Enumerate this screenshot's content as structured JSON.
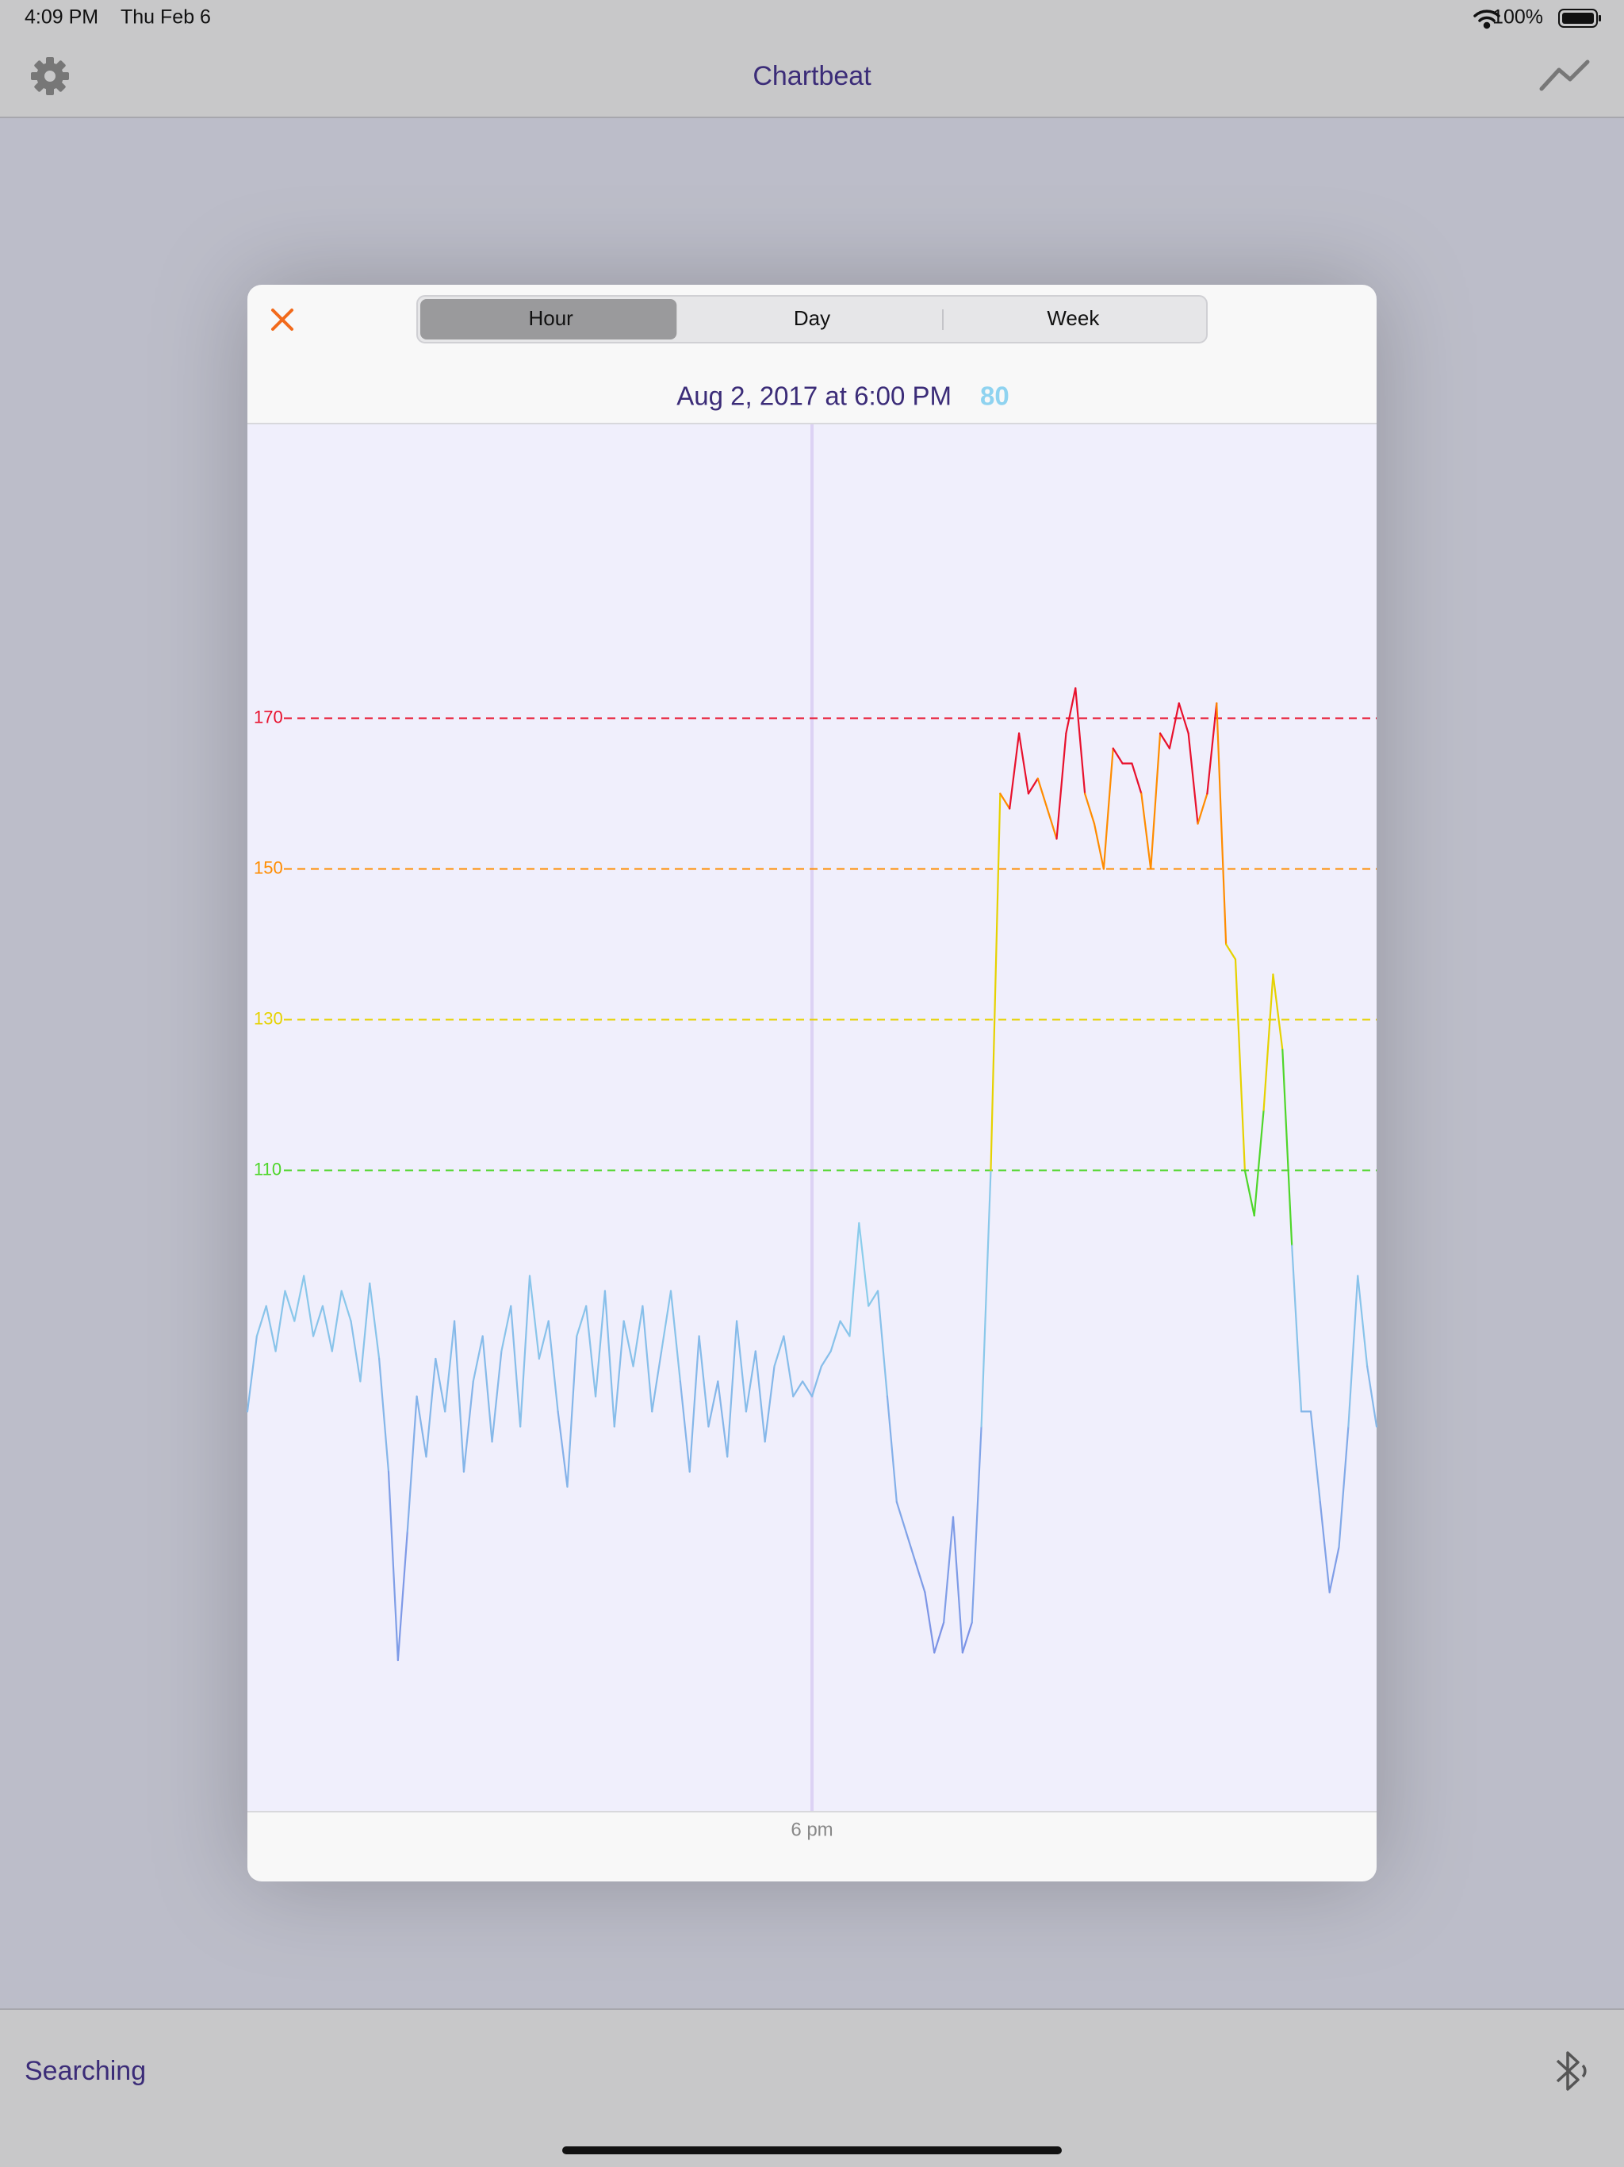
{
  "status_bar": {
    "time": "4:09 PM",
    "date": "Thu Feb 6",
    "battery": "100%"
  },
  "nav_bar": {
    "title": "Chartbeat"
  },
  "modal": {
    "segments": [
      "Hour",
      "Day",
      "Week"
    ],
    "selected_segment": 0,
    "timestamp": "Aug 2, 2017 at 6:00 PM",
    "current_value": 80
  },
  "chart_data": {
    "type": "line",
    "values": [
      78,
      88,
      92,
      86,
      94,
      90,
      96,
      88,
      92,
      86,
      94,
      90,
      82,
      95,
      85,
      70,
      45,
      62,
      80,
      72,
      85,
      78,
      90,
      70,
      82,
      88,
      74,
      86,
      92,
      76,
      96,
      85,
      90,
      78,
      68,
      88,
      92,
      80,
      94,
      76,
      90,
      84,
      92,
      78,
      86,
      94,
      82,
      70,
      88,
      76,
      82,
      72,
      90,
      78,
      86,
      74,
      84,
      88,
      80,
      82,
      80,
      84,
      86,
      90,
      88,
      103,
      92,
      94,
      80,
      66,
      62,
      58,
      54,
      46,
      50,
      64,
      46,
      50,
      76,
      110,
      160,
      158,
      168,
      160,
      162,
      158,
      154,
      168,
      174,
      160,
      156,
      150,
      166,
      164,
      164,
      160,
      150,
      168,
      166,
      172,
      168,
      156,
      160,
      172,
      140,
      138,
      110,
      104,
      118,
      136,
      126,
      100,
      78,
      78,
      66,
      54,
      60,
      76,
      96,
      84,
      76
    ],
    "xlim": [
      0,
      120
    ],
    "xticks": [
      {
        "value": 60,
        "label": "6 pm"
      }
    ],
    "ylim": [
      25,
      209
    ],
    "yticks": [
      170,
      150,
      130,
      110
    ],
    "ytick_colors": [
      "#e8112d",
      "#ff8c00",
      "#e6d200",
      "#4fd62a"
    ],
    "low_colors": [
      "#7b8fe6",
      "#8fdcec"
    ],
    "grid": true
  },
  "footer": {
    "status": "Searching"
  }
}
